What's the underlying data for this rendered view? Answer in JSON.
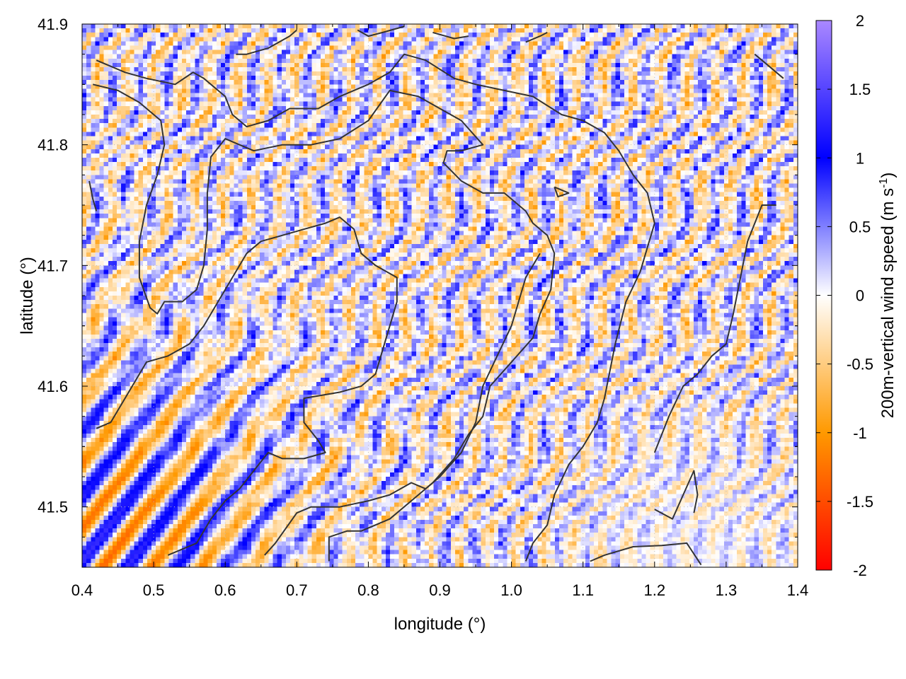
{
  "chart_data": {
    "type": "heatmap",
    "title": "",
    "xlabel": "longitude (°)",
    "ylabel": "latitude (°)",
    "colorbar_label_main": "200m-vertical wind speed (m s",
    "colorbar_label_sup": "-1",
    "colorbar_label_end": ")",
    "xlim": [
      0.4,
      1.4
    ],
    "ylim": [
      41.45,
      41.9
    ],
    "x_ticks": [
      0.4,
      0.5,
      0.6,
      0.7,
      0.8,
      0.9,
      1.0,
      1.1,
      1.2,
      1.3,
      1.4
    ],
    "x_tick_labels": [
      "0.4",
      "0.5",
      "0.6",
      "0.7",
      "0.8",
      "0.9",
      "1.0",
      "1.1",
      "1.2",
      "1.3",
      "1.4"
    ],
    "y_ticks": [
      41.5,
      41.6,
      41.7,
      41.8,
      41.9
    ],
    "y_tick_labels": [
      "41.5",
      "41.6",
      "41.7",
      "41.8",
      "41.9"
    ],
    "color_range": [
      -2,
      2
    ],
    "colorbar_ticks": [
      2,
      1.5,
      1,
      0.5,
      0,
      -0.5,
      -1,
      -1.5,
      -2
    ],
    "colorbar_tick_labels": [
      "2",
      "1.5",
      "1",
      "0.5",
      "0",
      "-0.5",
      "-1",
      "-1.5",
      "-2"
    ],
    "colormap": [
      {
        "v": -2,
        "color": "#ff0000"
      },
      {
        "v": -1,
        "color": "#ff9900"
      },
      {
        "v": 0,
        "color": "#ffffff"
      },
      {
        "v": 1,
        "color": "#0000ff"
      },
      {
        "v": 2,
        "color": "#aa88ff"
      }
    ],
    "grid": "dotted",
    "contour_color": "#333333",
    "grid_resolution": [
      165,
      126
    ],
    "contours": [
      [
        [
          0.42,
          41.87
        ],
        [
          0.46,
          41.86
        ],
        [
          0.49,
          41.855
        ],
        [
          0.53,
          41.85
        ],
        [
          0.555,
          41.86
        ],
        [
          0.57,
          41.855
        ],
        [
          0.6,
          41.84
        ],
        [
          0.61,
          41.825
        ],
        [
          0.63,
          41.815
        ],
        [
          0.66,
          41.82
        ],
        [
          0.69,
          41.83
        ],
        [
          0.73,
          41.83
        ],
        [
          0.76,
          41.84
        ],
        [
          0.8,
          41.85
        ],
        [
          0.83,
          41.86
        ],
        [
          0.85,
          41.875
        ],
        [
          0.88,
          41.87
        ],
        [
          0.92,
          41.855
        ],
        [
          0.95,
          41.85
        ],
        [
          0.99,
          41.845
        ],
        [
          1.03,
          41.84
        ],
        [
          1.07,
          41.825
        ],
        [
          1.1,
          41.82
        ],
        [
          1.13,
          41.81
        ],
        [
          1.15,
          41.795
        ],
        [
          1.17,
          41.775
        ],
        [
          1.19,
          41.76
        ],
        [
          1.2,
          41.735
        ],
        [
          1.19,
          41.715
        ],
        [
          1.18,
          41.695
        ],
        [
          1.16,
          41.67
        ],
        [
          1.145,
          41.635
        ],
        [
          1.13,
          41.59
        ],
        [
          1.12,
          41.57
        ],
        [
          1.1,
          41.55
        ],
        [
          1.08,
          41.535
        ],
        [
          1.06,
          41.51
        ],
        [
          1.05,
          41.485
        ],
        [
          1.03,
          41.47
        ],
        [
          1.02,
          41.455
        ]
      ],
      [
        [
          0.415,
          41.85
        ],
        [
          0.45,
          41.845
        ],
        [
          0.48,
          41.835
        ],
        [
          0.51,
          41.82
        ],
        [
          0.515,
          41.8
        ],
        [
          0.505,
          41.775
        ],
        [
          0.49,
          41.75
        ],
        [
          0.48,
          41.72
        ],
        [
          0.48,
          41.69
        ],
        [
          0.495,
          41.665
        ],
        [
          0.505,
          41.66
        ],
        [
          0.515,
          41.67
        ],
        [
          0.54,
          41.67
        ],
        [
          0.56,
          41.68
        ],
        [
          0.57,
          41.7
        ],
        [
          0.575,
          41.73
        ],
        [
          0.575,
          41.76
        ],
        [
          0.58,
          41.79
        ],
        [
          0.6,
          41.805
        ],
        [
          0.62,
          41.8
        ],
        [
          0.64,
          41.795
        ],
        [
          0.68,
          41.8
        ],
        [
          0.72,
          41.8
        ],
        [
          0.76,
          41.805
        ],
        [
          0.8,
          41.82
        ],
        [
          0.83,
          41.845
        ],
        [
          0.87,
          41.84
        ],
        [
          0.9,
          41.83
        ],
        [
          0.93,
          41.82
        ],
        [
          0.96,
          41.8
        ],
        [
          0.93,
          41.795
        ],
        [
          0.91,
          41.795
        ],
        [
          0.905,
          41.785
        ],
        [
          0.93,
          41.77
        ],
        [
          0.96,
          41.76
        ],
        [
          0.99,
          41.76
        ],
        [
          1.02,
          41.745
        ],
        [
          1.03,
          41.735
        ],
        [
          1.05,
          41.725
        ],
        [
          1.06,
          41.71
        ],
        [
          1.055,
          41.68
        ],
        [
          1.04,
          41.66
        ],
        [
          1.03,
          41.64
        ],
        [
          1.0,
          41.62
        ],
        [
          0.97,
          41.6
        ],
        [
          0.96,
          41.575
        ],
        [
          0.94,
          41.56
        ],
        [
          0.92,
          41.54
        ],
        [
          0.89,
          41.52
        ],
        [
          0.86,
          41.505
        ],
        [
          0.83,
          41.49
        ],
        [
          0.79,
          41.48
        ],
        [
          0.77,
          41.48
        ],
        [
          0.745,
          41.475
        ],
        [
          0.745,
          41.455
        ]
      ],
      [
        [
          0.42,
          41.565
        ],
        [
          0.44,
          41.57
        ],
        [
          0.47,
          41.6
        ],
        [
          0.49,
          41.62
        ],
        [
          0.52,
          41.625
        ],
        [
          0.55,
          41.635
        ],
        [
          0.57,
          41.65
        ],
        [
          0.59,
          41.67
        ],
        [
          0.61,
          41.69
        ],
        [
          0.63,
          41.71
        ],
        [
          0.65,
          41.72
        ],
        [
          0.68,
          41.725
        ],
        [
          0.71,
          41.73
        ],
        [
          0.74,
          41.735
        ],
        [
          0.76,
          41.74
        ],
        [
          0.78,
          41.73
        ],
        [
          0.79,
          41.71
        ],
        [
          0.81,
          41.7
        ],
        [
          0.84,
          41.69
        ],
        [
          0.84,
          41.67
        ],
        [
          0.83,
          41.65
        ],
        [
          0.82,
          41.63
        ],
        [
          0.81,
          41.61
        ],
        [
          0.79,
          41.6
        ],
        [
          0.76,
          41.595
        ],
        [
          0.71,
          41.59
        ],
        [
          0.71,
          41.57
        ],
        [
          0.73,
          41.555
        ],
        [
          0.74,
          41.545
        ],
        [
          0.71,
          41.54
        ],
        [
          0.68,
          41.54
        ],
        [
          0.66,
          41.545
        ],
        [
          0.64,
          41.53
        ],
        [
          0.62,
          41.515
        ],
        [
          0.6,
          41.505
        ],
        [
          0.58,
          41.49
        ],
        [
          0.56,
          41.47
        ],
        [
          0.52,
          41.46
        ]
      ],
      [
        [
          0.655,
          41.46
        ],
        [
          0.67,
          41.47
        ],
        [
          0.7,
          41.495
        ],
        [
          0.72,
          41.5
        ],
        [
          0.76,
          41.5
        ],
        [
          0.8,
          41.505
        ],
        [
          0.83,
          41.51
        ],
        [
          0.86,
          41.52
        ],
        [
          0.88,
          41.515
        ],
        [
          0.9,
          41.525
        ],
        [
          0.93,
          41.545
        ],
        [
          0.95,
          41.57
        ],
        [
          0.96,
          41.6
        ],
        [
          0.98,
          41.625
        ],
        [
          1.0,
          41.65
        ],
        [
          1.01,
          41.67
        ],
        [
          1.02,
          41.69
        ],
        [
          1.04,
          41.71
        ]
      ],
      [
        [
          1.11,
          41.455
        ],
        [
          1.13,
          41.46
        ],
        [
          1.17,
          41.467
        ],
        [
          1.21,
          41.468
        ],
        [
          1.245,
          41.47
        ],
        [
          1.265,
          41.452
        ]
      ],
      [
        [
          1.2,
          41.498
        ],
        [
          1.225,
          41.49
        ],
        [
          1.24,
          41.51
        ],
        [
          1.255,
          41.53
        ],
        [
          1.26,
          41.51
        ],
        [
          1.255,
          41.495
        ]
      ],
      [
        [
          1.06,
          41.765
        ],
        [
          1.08,
          41.76
        ],
        [
          1.065,
          41.757
        ],
        [
          1.06,
          41.765
        ]
      ],
      [
        [
          0.615,
          41.875
        ],
        [
          0.63,
          41.875
        ],
        [
          0.66,
          41.88
        ],
        [
          0.69,
          41.89
        ],
        [
          0.7,
          41.895
        ]
      ],
      [
        [
          0.785,
          41.895
        ],
        [
          0.8,
          41.89
        ],
        [
          0.82,
          41.893
        ],
        [
          0.85,
          41.898
        ]
      ],
      [
        [
          0.89,
          41.893
        ],
        [
          0.92,
          41.888
        ],
        [
          0.94,
          41.89
        ]
      ],
      [
        [
          1.02,
          41.885
        ],
        [
          1.04,
          41.89
        ],
        [
          1.05,
          41.893
        ]
      ],
      [
        [
          1.34,
          41.875
        ],
        [
          1.36,
          41.865
        ],
        [
          1.38,
          41.855
        ]
      ],
      [
        [
          1.37,
          41.75
        ],
        [
          1.35,
          41.75
        ],
        [
          1.33,
          41.72
        ],
        [
          1.32,
          41.69
        ],
        [
          1.31,
          41.66
        ],
        [
          1.3,
          41.635
        ],
        [
          1.28,
          41.625
        ],
        [
          1.26,
          41.61
        ],
        [
          1.24,
          41.6
        ],
        [
          1.22,
          41.575
        ],
        [
          1.2,
          41.545
        ]
      ],
      [
        [
          0.41,
          41.77
        ],
        [
          0.415,
          41.755
        ],
        [
          0.42,
          41.745
        ]
      ]
    ]
  }
}
